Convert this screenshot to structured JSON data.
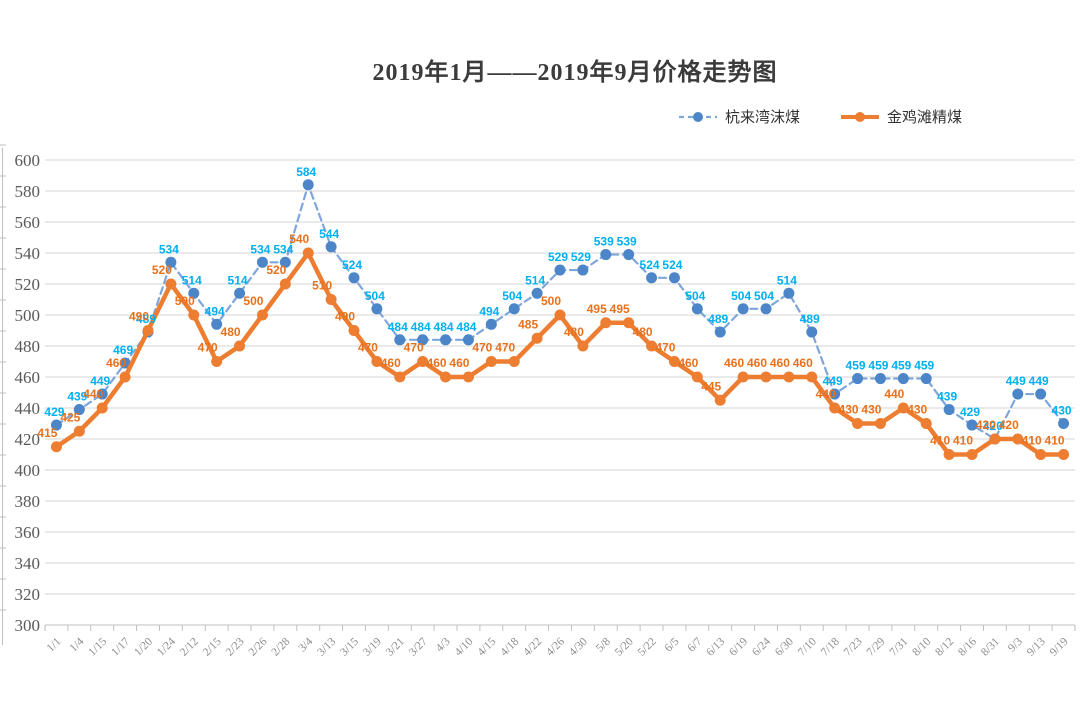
{
  "chart_data": {
    "type": "line",
    "title": "2019年1月——2019年9月价格走势图",
    "categories": [
      "1/1",
      "1/4",
      "1/15",
      "1/17",
      "1/20",
      "1/24",
      "2/12",
      "2/15",
      "2/23",
      "2/26",
      "2/28",
      "3/4",
      "3/13",
      "3/15",
      "3/19",
      "3/21",
      "3/27",
      "4/3",
      "4/10",
      "4/15",
      "4/18",
      "4/22",
      "4/26",
      "4/30",
      "5/8",
      "5/20",
      "5/22",
      "6/5",
      "6/7",
      "6/13",
      "6/19",
      "6/24",
      "6/30",
      "7/10",
      "7/18",
      "7/23",
      "7/29",
      "7/31",
      "8/10",
      "8/12",
      "8/16",
      "8/31",
      "9/3",
      "9/13",
      "9/19"
    ],
    "series": [
      {
        "name": "杭来湾沫煤",
        "style": "dashed",
        "line_color": "#7FA6DB",
        "marker_color": "#4C86C8",
        "label_color": "#00B0F0",
        "values": [
          429,
          439,
          449,
          469,
          489,
          534,
          514,
          494,
          514,
          534,
          534,
          584,
          544,
          524,
          504,
          484,
          484,
          484,
          484,
          494,
          504,
          514,
          529,
          529,
          539,
          539,
          524,
          524,
          504,
          489,
          504,
          504,
          514,
          489,
          449,
          459,
          459,
          459,
          459,
          439,
          429,
          420,
          449,
          449,
          430
        ]
      },
      {
        "name": "金鸡滩精煤",
        "style": "solid",
        "line_color": "#ED7D31",
        "marker_color": "#ED7D31",
        "label_color": "#E9711C",
        "values": [
          415,
          425,
          440,
          460,
          490,
          520,
          500,
          470,
          480,
          500,
          520,
          540,
          510,
          490,
          470,
          460,
          470,
          460,
          460,
          470,
          470,
          485,
          500,
          480,
          495,
          495,
          480,
          470,
          460,
          445,
          460,
          460,
          460,
          460,
          440,
          430,
          430,
          440,
          430,
          410,
          410,
          420,
          420,
          410,
          410
        ]
      }
    ],
    "ylim": [
      300,
      600
    ],
    "ytick_step": 20,
    "yticks": [
      "300",
      "320",
      "340",
      "360",
      "380",
      "400",
      "420",
      "440",
      "460",
      "480",
      "500",
      "520",
      "540",
      "560",
      "580",
      "600"
    ],
    "grid": true,
    "legend_position": "top-right"
  },
  "colors": {
    "grid": "#D6D6D6",
    "axis": "#BFBFBF",
    "y_label": "#595959",
    "x_label": "#8C8C8C",
    "title": "#3B3B3B",
    "background": "#FFFFFF"
  }
}
